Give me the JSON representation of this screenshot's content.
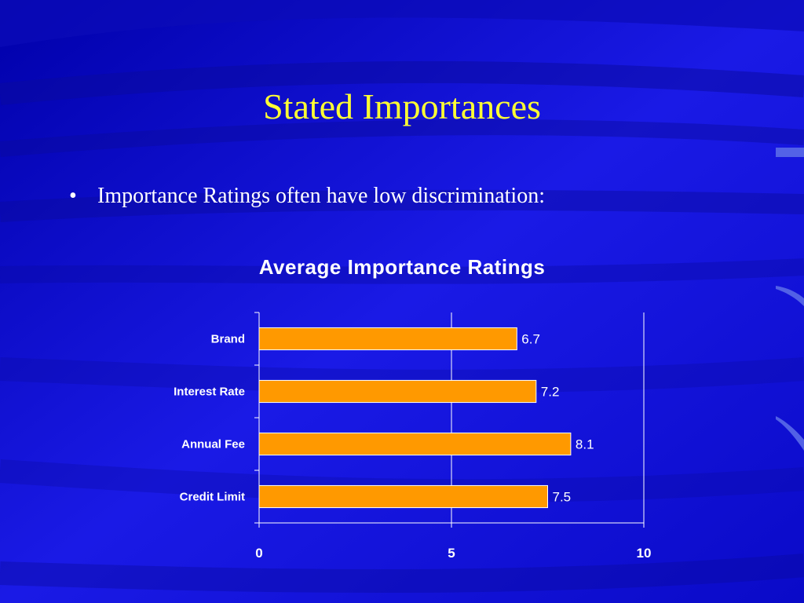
{
  "slide": {
    "title": "Stated Importances",
    "bullet": "Importance Ratings often have low discrimination:",
    "colors": {
      "background": "#1414d8",
      "title": "#ffff33",
      "bar": "#ff9900",
      "text": "#ffffff"
    }
  },
  "chart_data": {
    "type": "bar",
    "orientation": "horizontal",
    "title": "Average Importance Ratings",
    "categories": [
      "Brand",
      "Interest Rate",
      "Annual Fee",
      "Credit Limit"
    ],
    "values": [
      6.7,
      7.2,
      8.1,
      7.5
    ],
    "data_labels": [
      "6.7",
      "7.2",
      "8.1",
      "7.5"
    ],
    "xlim": [
      0,
      10
    ],
    "xticks": [
      0,
      5,
      10
    ],
    "xtick_labels": [
      "0",
      "5",
      "10"
    ],
    "grid": true,
    "legend": "none"
  }
}
